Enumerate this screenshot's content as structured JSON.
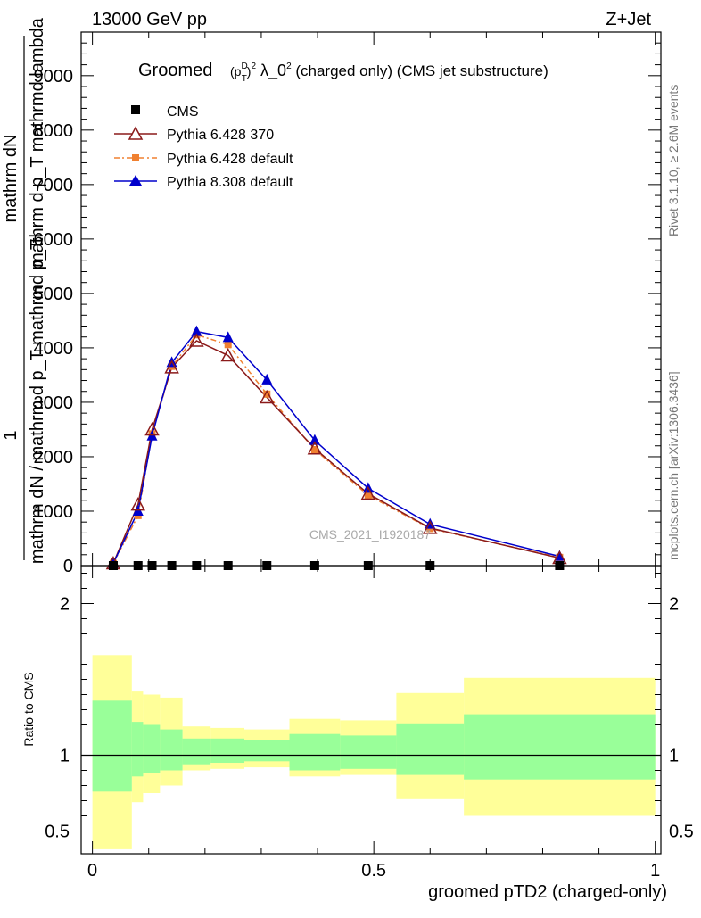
{
  "header": {
    "left": "13000 GeV pp",
    "right": "Z+Jet"
  },
  "side_labels": {
    "rivet": "Rivet 3.1.10, ≥ 2.6M events",
    "mcplots": "mcplots.cern.ch [arXiv:1306.3436]"
  },
  "ylabel_main": {
    "one": "1",
    "frac_top": "mathrm dN",
    "frac_den_top": "mathrm d p_T mathrmd lambda",
    "frac_bottom": "mathrm dN / mathrm d p_T mathrmd p_T"
  },
  "watermark": "CMS_2021_I1920187",
  "colors": {
    "data": "#000000",
    "pythia6_370": "#8b1a1a",
    "pythia6_default": "#f08030",
    "pythia8_default": "#0000cc",
    "band_inner": "#99ff99",
    "band_outer": "#ffff99"
  },
  "chart_data": [
    {
      "type": "line",
      "title": "Groomed (p_T^D)^2 λ_0^2 (charged only) (CMS jet substructure)",
      "xlabel": "groomed pTD2 (charged-only)",
      "ylabel": "",
      "xlim": [
        -0.02,
        1.01
      ],
      "ylim": [
        0,
        9800
      ],
      "yticks": [
        0,
        1000,
        2000,
        3000,
        4000,
        5000,
        6000,
        7000,
        8000,
        9000
      ],
      "ytick_labels": [
        "0",
        "1000",
        "2000",
        "3000",
        "4000",
        "5000",
        "6000",
        "7000",
        "8000",
        "9000"
      ],
      "legend_position": "top-left",
      "series": [
        {
          "name": "CMS",
          "marker": "square",
          "x": [
            0.037,
            0.081,
            0.106,
            0.141,
            0.185,
            0.241,
            0.31,
            0.395,
            0.49,
            0.6,
            0.83
          ],
          "y": [
            0,
            0,
            0,
            0,
            0,
            0,
            0,
            0,
            0,
            0,
            0
          ]
        },
        {
          "name": "Pythia 6.428 370",
          "marker": "open-triangle",
          "x": [
            0.037,
            0.081,
            0.106,
            0.141,
            0.185,
            0.241,
            0.31,
            0.395,
            0.49,
            0.6,
            0.83
          ],
          "y": [
            40,
            1120,
            2500,
            3640,
            4130,
            3860,
            3090,
            2150,
            1320,
            690,
            140
          ]
        },
        {
          "name": "Pythia 6.428 default",
          "marker": "filled-square",
          "x": [
            0.037,
            0.081,
            0.106,
            0.141,
            0.185,
            0.241,
            0.31,
            0.395,
            0.49,
            0.6,
            0.83
          ],
          "y": [
            40,
            920,
            2420,
            3660,
            4240,
            4060,
            3150,
            2130,
            1290,
            680,
            150
          ]
        },
        {
          "name": "Pythia 8.308 default",
          "marker": "filled-triangle",
          "x": [
            0.037,
            0.081,
            0.106,
            0.141,
            0.185,
            0.241,
            0.31,
            0.395,
            0.49,
            0.6,
            0.83
          ],
          "y": [
            40,
            1000,
            2380,
            3730,
            4300,
            4190,
            3410,
            2300,
            1420,
            760,
            170
          ]
        }
      ]
    },
    {
      "type": "area",
      "ylabel": "Ratio to CMS",
      "xlabel": "groomed pTD2 (charged-only)",
      "xlim": [
        -0.02,
        1.01
      ],
      "ylim": [
        0.35,
        2.25
      ],
      "yticks": [
        0.5,
        1,
        2
      ],
      "ytick_labels": [
        "0.5",
        "1",
        "2"
      ],
      "xticks": [
        0,
        0.5,
        1
      ],
      "xtick_labels": [
        "0",
        "0.5",
        "1"
      ],
      "bins": [
        {
          "x": [
            0.0,
            0.07
          ],
          "inner": [
            0.76,
            1.36
          ],
          "outer": [
            0.38,
            1.66
          ]
        },
        {
          "x": [
            0.07,
            0.09
          ],
          "inner": [
            0.86,
            1.22
          ],
          "outer": [
            0.69,
            1.42
          ]
        },
        {
          "x": [
            0.09,
            0.12
          ],
          "inner": [
            0.88,
            1.2
          ],
          "outer": [
            0.75,
            1.4
          ]
        },
        {
          "x": [
            0.12,
            0.16
          ],
          "inner": [
            0.9,
            1.17
          ],
          "outer": [
            0.8,
            1.38
          ]
        },
        {
          "x": [
            0.16,
            0.21
          ],
          "inner": [
            0.94,
            1.11
          ],
          "outer": [
            0.9,
            1.19
          ]
        },
        {
          "x": [
            0.21,
            0.27
          ],
          "inner": [
            0.95,
            1.11
          ],
          "outer": [
            0.91,
            1.18
          ]
        },
        {
          "x": [
            0.27,
            0.35
          ],
          "inner": [
            0.96,
            1.1
          ],
          "outer": [
            0.92,
            1.17
          ]
        },
        {
          "x": [
            0.35,
            0.44
          ],
          "inner": [
            0.9,
            1.14
          ],
          "outer": [
            0.86,
            1.24
          ]
        },
        {
          "x": [
            0.44,
            0.54
          ],
          "inner": [
            0.91,
            1.13
          ],
          "outer": [
            0.87,
            1.23
          ]
        },
        {
          "x": [
            0.54,
            0.66
          ],
          "inner": [
            0.87,
            1.21
          ],
          "outer": [
            0.71,
            1.41
          ]
        },
        {
          "x": [
            0.66,
            1.0
          ],
          "inner": [
            0.84,
            1.27
          ],
          "outer": [
            0.6,
            1.51
          ]
        }
      ],
      "reference_line": 1
    }
  ]
}
